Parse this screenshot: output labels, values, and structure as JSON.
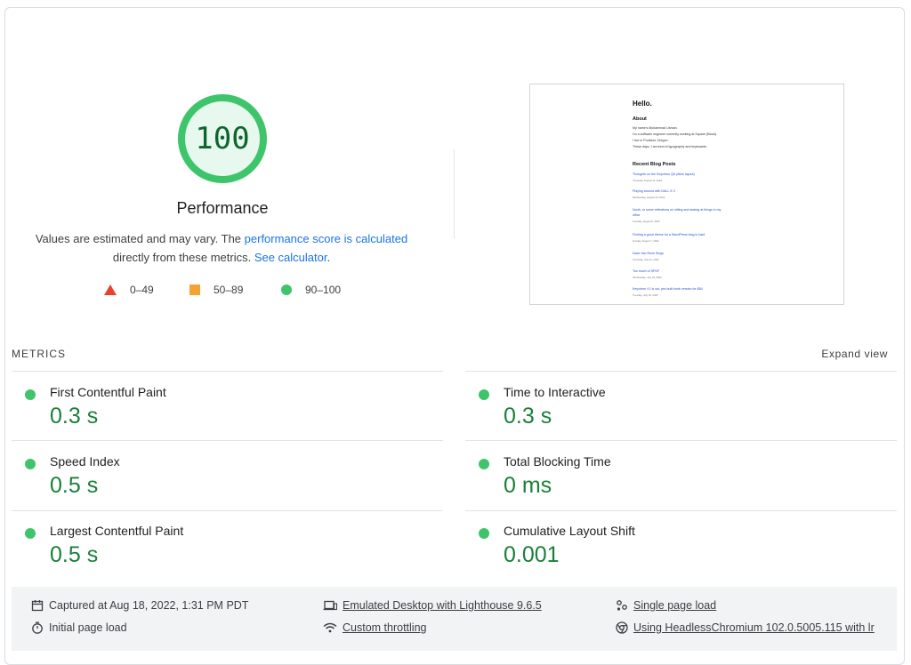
{
  "score": {
    "value": "100",
    "fraction": 1.0,
    "title": "Performance",
    "desc_prefix": "Values are estimated and may vary. The ",
    "desc_link1": "performance score is calculated",
    "desc_mid": "directly from these metrics. ",
    "desc_link2": "See calculator",
    "desc_suffix": ".",
    "color": "#0cce6b"
  },
  "legend": {
    "fail": "0–49",
    "average": "50–89",
    "pass": "90–100"
  },
  "thumbnail": {
    "heading": "Hello.",
    "about_heading": "About",
    "about_lines": [
      "My name's Muhammad Usman.",
      "I'm a software engineer currently working at Square (Block).",
      "I live in Portland, Oregon.",
      "These days, I am fond of typography and keyboards."
    ],
    "recent_heading": "Recent Blog Posts",
    "posts": [
      {
        "title": "Thoughts on the Keychron Q6 (Alice layout)",
        "date": "Thursday, August 11, 2022"
      },
      {
        "title": "Playing around with DALL·E 2",
        "date": "Wednesday, August 10, 2022"
      },
      {
        "title": "North, or some reflections on sitting and staring at things in my",
        "title2": "office",
        "date": "Tuesday, August 9, 2022"
      },
      {
        "title": "Finding a good theme for a WordPress blog is hard",
        "date": "Sunday, August 7, 2022"
      },
      {
        "title": "Dave Van Ronk Sings",
        "date": "Thursday, July 21, 2022"
      },
      {
        "title": "Too much of SPOF",
        "date": "Wednesday, July 20, 2022"
      },
      {
        "title": "Keychron V1 is out, pre-built knob version for $84",
        "date": "Tuesday, July 19, 2022"
      }
    ]
  },
  "metrics": {
    "label": "METRICS",
    "expand": "Expand view",
    "items": [
      {
        "name": "First Contentful Paint",
        "value": "0.3 s"
      },
      {
        "name": "Time to Interactive",
        "value": "0.3 s"
      },
      {
        "name": "Speed Index",
        "value": "0.5 s"
      },
      {
        "name": "Total Blocking Time",
        "value": "0 ms"
      },
      {
        "name": "Largest Contentful Paint",
        "value": "0.5 s"
      },
      {
        "name": "Cumulative Layout Shift",
        "value": "0.001"
      }
    ]
  },
  "footer": {
    "captured": "Captured at Aug 18, 2022, 1:31 PM PDT",
    "initial": "Initial page load",
    "emulated": "Emulated Desktop with Lighthouse 9.6.5",
    "throttling": "Custom throttling",
    "single": "Single page load",
    "browser": "Using HeadlessChromium 102.0.5005.115 with lr"
  }
}
